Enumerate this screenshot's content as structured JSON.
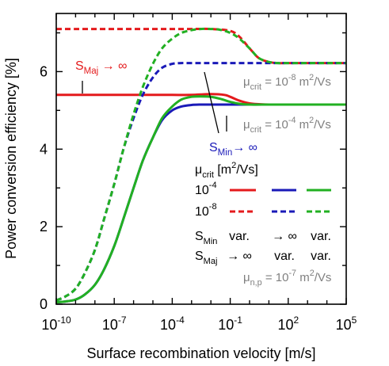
{
  "chart_data": {
    "type": "line",
    "xlabel": "Surface recombination velocity [m/s]",
    "ylabel": "Power conversion efficiency [%]",
    "x_scale": "log",
    "xlim": [
      1e-10,
      100000
    ],
    "ylim": [
      0,
      7.5
    ],
    "grid": false,
    "x_ticks": [
      {
        "base": "10",
        "exp": "-10",
        "value": 1e-10
      },
      {
        "base": "10",
        "exp": "-7",
        "value": 1e-07
      },
      {
        "base": "10",
        "exp": "-4",
        "value": 0.0001
      },
      {
        "base": "10",
        "exp": "-1",
        "value": 0.1
      },
      {
        "base": "10",
        "exp": "2",
        "value": 100
      },
      {
        "base": "10",
        "exp": "5",
        "value": 100000
      }
    ],
    "y_ticks": [
      {
        "label": "0",
        "value": 0
      },
      {
        "label": "2",
        "value": 2
      },
      {
        "label": "4",
        "value": 4
      },
      {
        "label": "6",
        "value": 6
      }
    ],
    "series": [
      {
        "mu_crit": "1e-4",
        "s_min": "var.",
        "s_maj": "→ ∞",
        "color": "#e41a1c",
        "style": "solid",
        "x": [
          1e-10,
          1e-09,
          1e-08,
          1e-07,
          1e-06,
          1e-05,
          0.0001,
          0.001,
          0.01,
          0.05,
          0.1,
          0.3,
          1,
          3,
          10,
          100,
          1000,
          10000,
          100000
        ],
        "y": [
          5.4,
          5.4,
          5.4,
          5.4,
          5.4,
          5.4,
          5.4,
          5.4,
          5.42,
          5.4,
          5.35,
          5.25,
          5.18,
          5.16,
          5.15,
          5.15,
          5.15,
          5.15,
          5.15
        ]
      },
      {
        "mu_crit": "1e-4",
        "s_min": "→ ∞",
        "s_maj": "var.",
        "color": "#1a1ab8",
        "style": "solid",
        "x": [
          1e-10,
          3e-10,
          1e-09,
          3e-09,
          1e-08,
          3e-08,
          1e-07,
          3e-07,
          1e-06,
          3e-06,
          1e-05,
          3e-05,
          0.0001,
          0.0003,
          0.001,
          0.003,
          0.01,
          0.1,
          1,
          10,
          100,
          1000,
          10000,
          100000
        ],
        "y": [
          0.05,
          0.07,
          0.12,
          0.25,
          0.5,
          0.9,
          1.5,
          2.2,
          3.0,
          3.7,
          4.3,
          4.75,
          5.0,
          5.1,
          5.14,
          5.15,
          5.15,
          5.15,
          5.15,
          5.15,
          5.15,
          5.15,
          5.15,
          5.15
        ]
      },
      {
        "mu_crit": "1e-4",
        "s_min": "var.",
        "s_maj": "var.",
        "color": "#22b022",
        "style": "solid",
        "x": [
          1e-10,
          3e-10,
          1e-09,
          3e-09,
          1e-08,
          3e-08,
          1e-07,
          3e-07,
          1e-06,
          3e-06,
          1e-05,
          3e-05,
          0.0001,
          0.0003,
          0.001,
          0.003,
          0.01,
          0.03,
          0.1,
          0.3,
          1,
          10,
          100,
          1000,
          10000,
          100000
        ],
        "y": [
          0.05,
          0.07,
          0.12,
          0.25,
          0.5,
          0.9,
          1.5,
          2.2,
          3.0,
          3.7,
          4.3,
          4.8,
          5.1,
          5.28,
          5.35,
          5.36,
          5.35,
          5.3,
          5.22,
          5.17,
          5.15,
          5.15,
          5.15,
          5.15,
          5.15,
          5.15
        ]
      },
      {
        "mu_crit": "1e-8",
        "s_min": "var.",
        "s_maj": "→ ∞",
        "color": "#e41a1c",
        "style": "dashed",
        "x": [
          1e-10,
          1e-09,
          1e-08,
          1e-07,
          1e-06,
          1e-05,
          0.0001,
          0.001,
          0.01,
          0.1,
          0.3,
          1,
          3,
          10,
          30,
          100,
          1000,
          10000,
          100000
        ],
        "y": [
          7.1,
          7.1,
          7.1,
          7.1,
          7.1,
          7.1,
          7.1,
          7.1,
          7.1,
          7.05,
          6.9,
          6.6,
          6.35,
          6.25,
          6.22,
          6.22,
          6.22,
          6.22,
          6.22
        ]
      },
      {
        "mu_crit": "1e-8",
        "s_min": "→ ∞",
        "s_maj": "var.",
        "color": "#1a1ab8",
        "style": "dashed",
        "x": [
          1e-10,
          3e-10,
          1e-09,
          3e-09,
          1e-08,
          3e-08,
          1e-07,
          3e-07,
          1e-06,
          3e-06,
          1e-05,
          3e-05,
          0.0001,
          0.0003,
          0.001,
          0.003,
          0.01,
          0.1,
          1,
          10,
          100,
          1000,
          10000,
          100000
        ],
        "y": [
          0.1,
          0.2,
          0.4,
          0.8,
          1.4,
          2.2,
          3.1,
          4.0,
          4.8,
          5.4,
          5.85,
          6.1,
          6.2,
          6.22,
          6.22,
          6.22,
          6.22,
          6.22,
          6.22,
          6.22,
          6.22,
          6.22,
          6.22,
          6.22
        ]
      },
      {
        "mu_crit": "1e-8",
        "s_min": "var.",
        "s_maj": "var.",
        "color": "#22b022",
        "style": "dashed",
        "x": [
          1e-10,
          3e-10,
          1e-09,
          3e-09,
          1e-08,
          3e-08,
          1e-07,
          3e-07,
          1e-06,
          3e-06,
          1e-05,
          3e-05,
          0.0001,
          0.0003,
          0.001,
          0.003,
          0.01,
          0.03,
          0.1,
          0.3,
          1,
          3,
          10,
          30,
          100,
          1000,
          10000,
          100000
        ],
        "y": [
          0.1,
          0.2,
          0.4,
          0.8,
          1.4,
          2.2,
          3.1,
          4.0,
          4.9,
          5.6,
          6.2,
          6.6,
          6.85,
          7.0,
          7.07,
          7.1,
          7.1,
          7.08,
          7.0,
          6.85,
          6.6,
          6.35,
          6.25,
          6.22,
          6.22,
          6.22,
          6.22,
          6.22
        ]
      }
    ],
    "annotations": [
      {
        "id": "smaj",
        "base": "S",
        "sub": "Maj",
        "suffix": " → ∞",
        "color": "#e41a1c"
      },
      {
        "id": "smin",
        "base": "S",
        "sub": "Min",
        "suffix": "→ ∞",
        "color": "#1a1ab8"
      },
      {
        "id": "mu8",
        "base": "μ",
        "sub": "crit",
        "mid": " = 10",
        "sup": "-8",
        "tail": " m",
        "sup2": "2",
        "tail2": "/Vs",
        "color": "#808080"
      },
      {
        "id": "mu4",
        "base": "μ",
        "sub": "crit",
        "mid": " = 10",
        "sup": "-4",
        "tail": " m",
        "sup2": "2",
        "tail2": "/Vs",
        "color": "#808080"
      },
      {
        "id": "mup",
        "base": "μ",
        "sub": "n,p",
        "mid": " = 10",
        "sup": "-7",
        "tail": " m",
        "sup2": "2",
        "tail2": "/Vs",
        "color": "#808080"
      }
    ],
    "legend": {
      "position": "bottom-right",
      "header": {
        "base": "μ",
        "sub": "crit",
        "tail": "  [m",
        "sup": "2",
        "tail2": "/Vs]"
      },
      "row_labels": [
        {
          "base": "10",
          "sup": "-4"
        },
        {
          "base": "10",
          "sup": "-8"
        }
      ],
      "smin_label": {
        "base": "S",
        "sub": "Min"
      },
      "smaj_label": {
        "base": "S",
        "sub": "Maj"
      },
      "smin_values": [
        "var.",
        "→ ∞",
        "var."
      ],
      "smaj_values": [
        "→ ∞",
        "var.",
        "var."
      ],
      "column_colors": [
        "#e41a1c",
        "#1a1ab8",
        "#22b022"
      ]
    }
  }
}
